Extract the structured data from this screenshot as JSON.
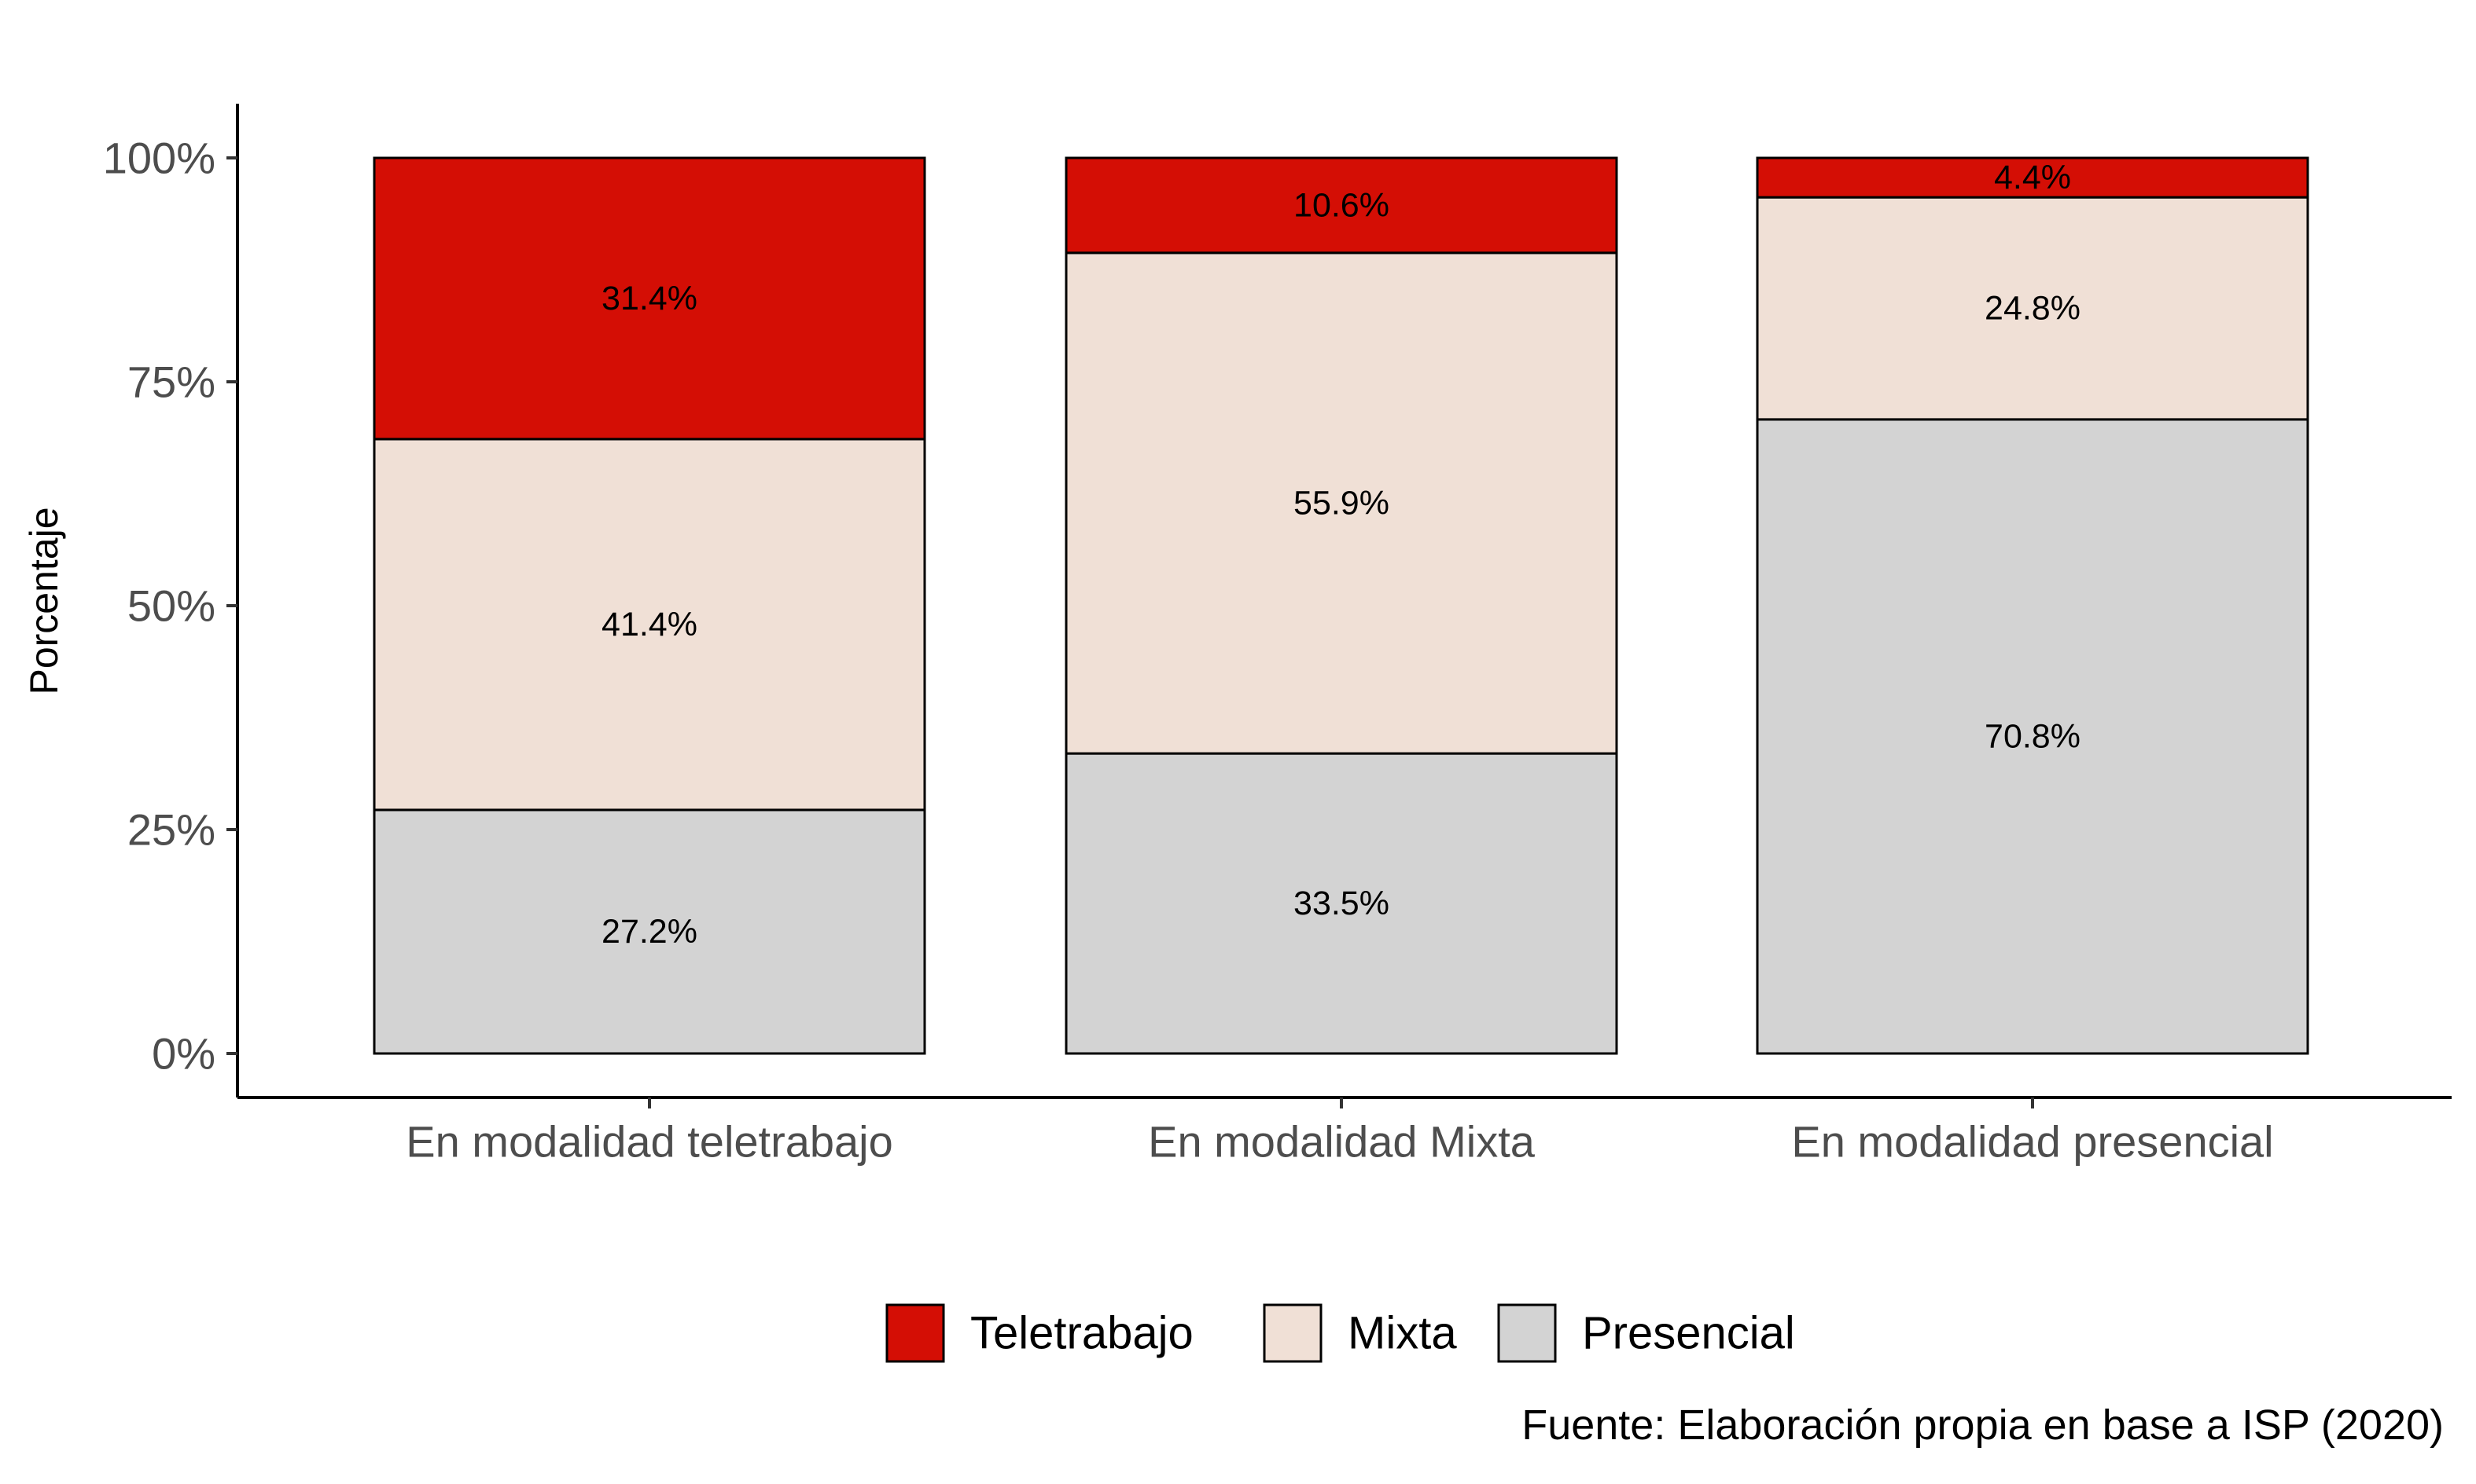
{
  "chart_data": {
    "type": "bar",
    "stacked": true,
    "percent": true,
    "categories": [
      "En modalidad teletrabajo",
      "En modalidad Mixta",
      "En modalidad presencial"
    ],
    "series": [
      {
        "name": "Presencial",
        "color": "#d3d3d3",
        "values": [
          27.2,
          33.5,
          70.8
        ],
        "labels": [
          "27.2%",
          "33.5%",
          "70.8%"
        ]
      },
      {
        "name": "Mixta",
        "color": "#f0e0d6",
        "values": [
          41.4,
          55.9,
          24.8
        ],
        "labels": [
          "41.4%",
          "55.9%",
          "24.8%"
        ]
      },
      {
        "name": "Teletrabajo",
        "color": "#d40e05",
        "values": [
          31.4,
          10.6,
          4.4
        ],
        "labels": [
          "31.4%",
          "10.6%",
          "4.4%"
        ]
      }
    ],
    "legend_order": [
      "Teletrabajo",
      "Mixta",
      "Presencial"
    ],
    "ylabel": "Porcentaje",
    "xlabel": "",
    "ylim": [
      0,
      100
    ],
    "yticks": [
      0,
      25,
      50,
      75,
      100
    ],
    "ytick_labels": [
      "0%",
      "25%",
      "50%",
      "75%",
      "100%"
    ],
    "caption": "Fuente: Elaboración propia en base a ISP (2020)",
    "legend_position": "bottom",
    "grid": false
  }
}
